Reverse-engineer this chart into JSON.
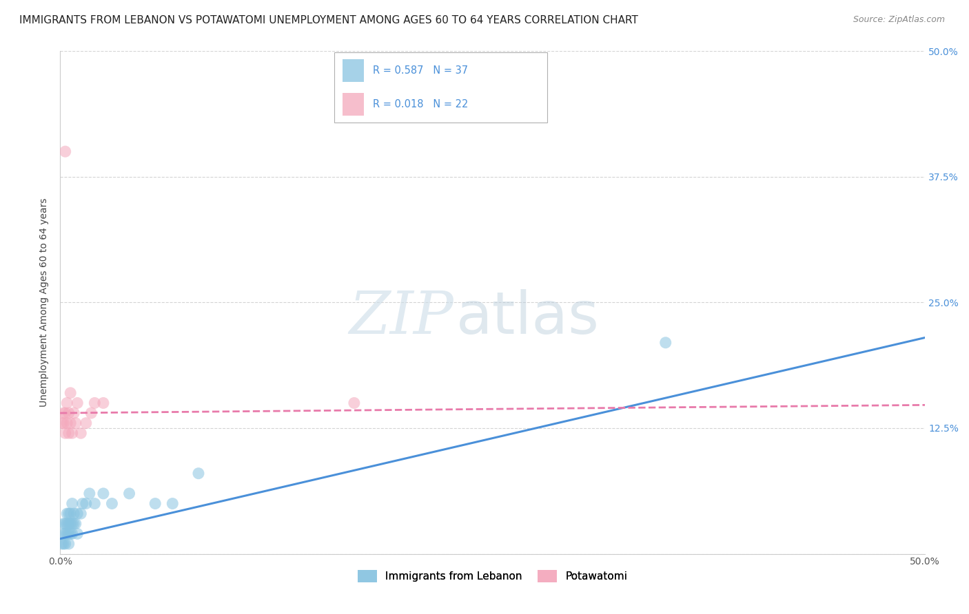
{
  "title": "IMMIGRANTS FROM LEBANON VS POTAWATOMI UNEMPLOYMENT AMONG AGES 60 TO 64 YEARS CORRELATION CHART",
  "source": "Source: ZipAtlas.com",
  "ylabel": "Unemployment Among Ages 60 to 64 years",
  "xlim": [
    0.0,
    0.5
  ],
  "ylim": [
    0.0,
    0.5
  ],
  "xticks": [
    0.0,
    0.125,
    0.25,
    0.375,
    0.5
  ],
  "xtick_labels": [
    "0.0%",
    "",
    "",
    "",
    "50.0%"
  ],
  "ytick_positions": [
    0.0,
    0.125,
    0.25,
    0.375,
    0.5
  ],
  "ytick_labels_right": [
    "",
    "12.5%",
    "25.0%",
    "37.5%",
    "50.0%"
  ],
  "color_blue": "#89c4e1",
  "color_pink": "#f4a8bc",
  "color_blue_line": "#4a90d9",
  "color_pink_line": "#e87aaa",
  "blue_scatter_x": [
    0.001,
    0.002,
    0.002,
    0.002,
    0.003,
    0.003,
    0.003,
    0.004,
    0.004,
    0.004,
    0.005,
    0.005,
    0.005,
    0.005,
    0.006,
    0.006,
    0.006,
    0.007,
    0.007,
    0.007,
    0.008,
    0.008,
    0.009,
    0.01,
    0.01,
    0.012,
    0.013,
    0.015,
    0.017,
    0.02,
    0.025,
    0.03,
    0.04,
    0.055,
    0.065,
    0.08,
    0.35
  ],
  "blue_scatter_y": [
    0.01,
    0.01,
    0.02,
    0.03,
    0.01,
    0.02,
    0.03,
    0.02,
    0.03,
    0.04,
    0.01,
    0.02,
    0.03,
    0.04,
    0.02,
    0.03,
    0.04,
    0.02,
    0.03,
    0.05,
    0.03,
    0.04,
    0.03,
    0.02,
    0.04,
    0.04,
    0.05,
    0.05,
    0.06,
    0.05,
    0.06,
    0.05,
    0.06,
    0.05,
    0.05,
    0.08,
    0.21
  ],
  "pink_scatter_x": [
    0.001,
    0.002,
    0.002,
    0.003,
    0.003,
    0.004,
    0.004,
    0.005,
    0.005,
    0.006,
    0.006,
    0.007,
    0.008,
    0.009,
    0.01,
    0.012,
    0.015,
    0.018,
    0.02,
    0.025,
    0.17,
    0.003
  ],
  "pink_scatter_y": [
    0.13,
    0.13,
    0.14,
    0.12,
    0.14,
    0.13,
    0.15,
    0.12,
    0.14,
    0.13,
    0.16,
    0.12,
    0.14,
    0.13,
    0.15,
    0.12,
    0.13,
    0.14,
    0.15,
    0.15,
    0.15,
    0.4
  ],
  "blue_line_x": [
    0.0,
    0.5
  ],
  "blue_line_y": [
    0.015,
    0.215
  ],
  "pink_line_x": [
    0.0,
    0.5
  ],
  "pink_line_y": [
    0.14,
    0.148
  ],
  "watermark_zip": "ZIP",
  "watermark_atlas": "atlas",
  "background_color": "#ffffff",
  "grid_color": "#d0d0d0",
  "title_fontsize": 11,
  "axis_fontsize": 10,
  "legend_fontsize": 11
}
